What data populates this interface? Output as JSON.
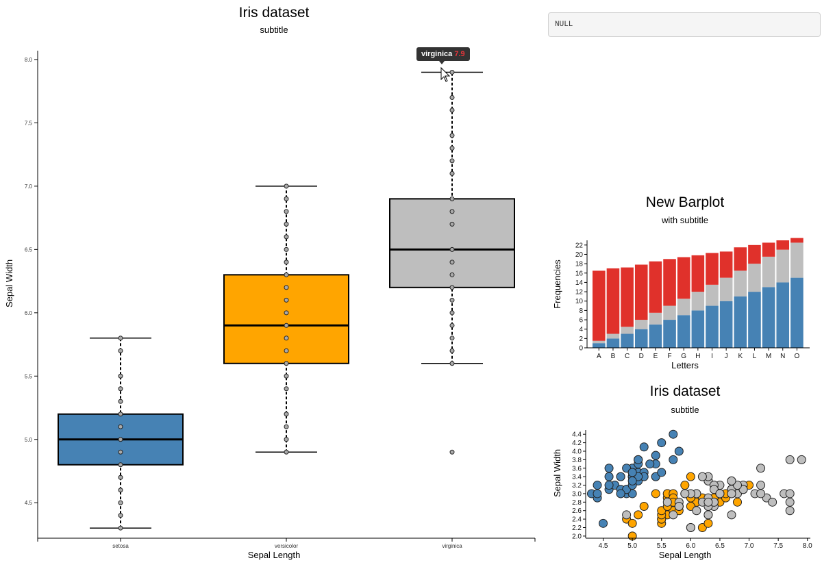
{
  "output_box": {
    "text": "NULL"
  },
  "tooltip": {
    "label": "virginica",
    "value": "7.9"
  },
  "chart_data": [
    {
      "type": "boxplot",
      "title": "Iris dataset",
      "subtitle": "subtitle",
      "xlabel": "Sepal Length",
      "ylabel": "Sepal Width",
      "ylim": [
        4.22,
        8.07
      ],
      "yticks": [
        "4.5",
        "5.0",
        "5.5",
        "6.0",
        "6.5",
        "7.0",
        "7.5",
        "8.0"
      ],
      "categories": [
        "setosa",
        "versicolor",
        "virginica"
      ],
      "colors": [
        "#4682b4",
        "#ffa500",
        "#bebebe"
      ],
      "boxes": [
        {
          "name": "setosa",
          "whisker_low": 4.3,
          "q1": 4.8,
          "median": 5.0,
          "q3": 5.2,
          "whisker_high": 5.8,
          "points": [
            4.3,
            4.4,
            4.5,
            4.6,
            4.7,
            4.8,
            4.9,
            5.0,
            5.1,
            5.2,
            5.3,
            5.4,
            5.5,
            5.7,
            5.8
          ]
        },
        {
          "name": "versicolor",
          "whisker_low": 4.9,
          "q1": 5.6,
          "median": 5.9,
          "q3": 6.3,
          "whisker_high": 7.0,
          "points": [
            4.9,
            5.0,
            5.1,
            5.2,
            5.4,
            5.5,
            5.6,
            5.7,
            5.8,
            5.9,
            6.0,
            6.1,
            6.2,
            6.3,
            6.4,
            6.5,
            6.6,
            6.7,
            6.8,
            6.9,
            7.0
          ]
        },
        {
          "name": "virginica",
          "whisker_low": 5.6,
          "q1": 6.2,
          "median": 6.5,
          "q3": 6.9,
          "whisker_high": 7.9,
          "points": [
            4.9,
            5.6,
            5.7,
            5.8,
            5.9,
            6.0,
            6.1,
            6.2,
            6.3,
            6.4,
            6.5,
            6.7,
            6.8,
            6.9,
            7.1,
            7.2,
            7.3,
            7.4,
            7.6,
            7.7,
            7.9
          ]
        }
      ]
    },
    {
      "type": "bar",
      "stacked": true,
      "title": "New Barplot",
      "subtitle": "with subtitle",
      "xlabel": "Letters",
      "ylabel": "Frequencies",
      "ylim": [
        0,
        23
      ],
      "yticks": [
        0,
        2,
        4,
        6,
        8,
        10,
        12,
        14,
        16,
        18,
        20,
        22
      ],
      "categories": [
        "A",
        "B",
        "C",
        "D",
        "E",
        "F",
        "G",
        "H",
        "I",
        "J",
        "K",
        "L",
        "M",
        "N",
        "O"
      ],
      "series": [
        {
          "name": "blue",
          "color": "#4682b4",
          "values": [
            1,
            2,
            3,
            4,
            5,
            6,
            7,
            8,
            9,
            10,
            11,
            12,
            13,
            14,
            15
          ]
        },
        {
          "name": "grey",
          "color": "#bebebe",
          "values": [
            0.5,
            1,
            1.5,
            2,
            2.5,
            3,
            3.5,
            4,
            4.5,
            5,
            5.5,
            6,
            6.5,
            7,
            7.5
          ]
        },
        {
          "name": "red",
          "color": "#e0312b",
          "values": [
            15,
            14,
            12.7,
            11.8,
            11,
            10,
            8.9,
            7.8,
            6.8,
            5.6,
            5,
            4,
            3,
            2,
            1
          ]
        }
      ]
    },
    {
      "type": "scatter",
      "title": "Iris dataset",
      "subtitle": "subtitle",
      "xlabel": "Sepal Length",
      "ylabel": "Sepal Width",
      "xlim": [
        4.2,
        8.05
      ],
      "ylim": [
        1.95,
        4.5
      ],
      "xticks": [
        "4.5",
        "5.0",
        "5.5",
        "6.0",
        "6.5",
        "7.0",
        "7.5",
        "8.0"
      ],
      "yticks": [
        "2.0",
        "2.2",
        "2.4",
        "2.6",
        "2.8",
        "3.0",
        "3.2",
        "3.4",
        "3.6",
        "3.8",
        "4.0",
        "4.2",
        "4.4"
      ],
      "series": [
        {
          "name": "setosa",
          "color": "#4682b4",
          "points": [
            [
              5.1,
              3.5
            ],
            [
              4.9,
              3.0
            ],
            [
              4.7,
              3.2
            ],
            [
              4.6,
              3.1
            ],
            [
              5.0,
              3.6
            ],
            [
              5.4,
              3.9
            ],
            [
              4.6,
              3.4
            ],
            [
              5.0,
              3.4
            ],
            [
              4.4,
              2.9
            ],
            [
              4.9,
              3.1
            ],
            [
              5.4,
              3.7
            ],
            [
              4.8,
              3.4
            ],
            [
              4.8,
              3.0
            ],
            [
              4.3,
              3.0
            ],
            [
              5.8,
              4.0
            ],
            [
              5.7,
              4.4
            ],
            [
              5.4,
              3.9
            ],
            [
              5.1,
              3.5
            ],
            [
              5.7,
              3.8
            ],
            [
              5.1,
              3.8
            ],
            [
              5.4,
              3.4
            ],
            [
              5.1,
              3.7
            ],
            [
              4.6,
              3.6
            ],
            [
              5.1,
              3.3
            ],
            [
              4.8,
              3.4
            ],
            [
              5.0,
              3.0
            ],
            [
              5.0,
              3.4
            ],
            [
              5.2,
              3.5
            ],
            [
              5.2,
              3.4
            ],
            [
              4.7,
              3.2
            ],
            [
              4.8,
              3.1
            ],
            [
              5.4,
              3.4
            ],
            [
              5.2,
              4.1
            ],
            [
              5.5,
              4.2
            ],
            [
              4.9,
              3.1
            ],
            [
              5.0,
              3.2
            ],
            [
              5.5,
              3.5
            ],
            [
              4.9,
              3.6
            ],
            [
              4.4,
              3.0
            ],
            [
              5.1,
              3.4
            ],
            [
              5.0,
              3.5
            ],
            [
              4.5,
              2.3
            ],
            [
              4.4,
              3.2
            ],
            [
              5.0,
              3.5
            ],
            [
              5.1,
              3.8
            ],
            [
              4.8,
              3.0
            ],
            [
              5.1,
              3.8
            ],
            [
              4.6,
              3.2
            ],
            [
              5.3,
              3.7
            ],
            [
              5.0,
              3.3
            ]
          ]
        },
        {
          "name": "versicolor",
          "color": "#ffa500",
          "points": [
            [
              7.0,
              3.2
            ],
            [
              6.4,
              3.2
            ],
            [
              6.9,
              3.1
            ],
            [
              5.5,
              2.3
            ],
            [
              6.5,
              2.8
            ],
            [
              5.7,
              2.8
            ],
            [
              6.3,
              3.3
            ],
            [
              4.9,
              2.4
            ],
            [
              6.6,
              2.9
            ],
            [
              5.2,
              2.7
            ],
            [
              5.0,
              2.0
            ],
            [
              5.9,
              3.0
            ],
            [
              6.0,
              2.2
            ],
            [
              6.1,
              2.9
            ],
            [
              5.6,
              2.9
            ],
            [
              6.7,
              3.1
            ],
            [
              5.6,
              3.0
            ],
            [
              5.8,
              2.7
            ],
            [
              6.2,
              2.2
            ],
            [
              5.6,
              2.5
            ],
            [
              5.9,
              3.2
            ],
            [
              6.1,
              2.8
            ],
            [
              6.3,
              2.5
            ],
            [
              6.1,
              2.8
            ],
            [
              6.4,
              2.9
            ],
            [
              6.6,
              3.0
            ],
            [
              6.8,
              2.8
            ],
            [
              6.7,
              3.0
            ],
            [
              6.0,
              2.9
            ],
            [
              5.7,
              2.6
            ],
            [
              5.5,
              2.4
            ],
            [
              5.5,
              2.4
            ],
            [
              5.8,
              2.7
            ],
            [
              6.0,
              2.7
            ],
            [
              5.4,
              3.0
            ],
            [
              6.0,
              3.4
            ],
            [
              6.7,
              3.1
            ],
            [
              6.3,
              2.3
            ],
            [
              5.6,
              3.0
            ],
            [
              5.5,
              2.5
            ],
            [
              5.5,
              2.6
            ],
            [
              6.1,
              3.0
            ],
            [
              5.8,
              2.6
            ],
            [
              5.0,
              2.3
            ],
            [
              5.6,
              2.7
            ],
            [
              5.7,
              3.0
            ],
            [
              5.7,
              2.9
            ],
            [
              6.2,
              2.9
            ],
            [
              5.1,
              2.5
            ],
            [
              5.7,
              2.8
            ]
          ]
        },
        {
          "name": "virginica",
          "color": "#bebebe",
          "points": [
            [
              6.3,
              3.3
            ],
            [
              5.8,
              2.7
            ],
            [
              7.1,
              3.0
            ],
            [
              6.3,
              2.9
            ],
            [
              6.5,
              3.0
            ],
            [
              7.6,
              3.0
            ],
            [
              4.9,
              2.5
            ],
            [
              7.3,
              2.9
            ],
            [
              6.7,
              2.5
            ],
            [
              7.2,
              3.6
            ],
            [
              6.5,
              3.2
            ],
            [
              6.4,
              2.7
            ],
            [
              6.8,
              3.0
            ],
            [
              5.7,
              2.5
            ],
            [
              5.8,
              2.8
            ],
            [
              6.4,
              3.2
            ],
            [
              6.5,
              3.0
            ],
            [
              7.7,
              3.8
            ],
            [
              7.7,
              2.6
            ],
            [
              6.0,
              2.2
            ],
            [
              6.9,
              3.2
            ],
            [
              5.6,
              2.8
            ],
            [
              7.7,
              2.8
            ],
            [
              6.3,
              2.7
            ],
            [
              6.7,
              3.3
            ],
            [
              7.2,
              3.2
            ],
            [
              6.2,
              2.8
            ],
            [
              6.1,
              3.0
            ],
            [
              6.4,
              2.8
            ],
            [
              7.2,
              3.0
            ],
            [
              7.4,
              2.8
            ],
            [
              7.9,
              3.8
            ],
            [
              6.4,
              2.8
            ],
            [
              6.3,
              2.8
            ],
            [
              6.1,
              2.6
            ],
            [
              7.7,
              3.0
            ],
            [
              6.3,
              3.4
            ],
            [
              6.4,
              3.1
            ],
            [
              6.0,
              3.0
            ],
            [
              6.9,
              3.1
            ],
            [
              6.7,
              3.1
            ],
            [
              6.9,
              3.1
            ],
            [
              5.8,
              2.7
            ],
            [
              6.8,
              3.2
            ],
            [
              6.7,
              3.3
            ],
            [
              6.7,
              3.0
            ],
            [
              6.3,
              2.5
            ],
            [
              6.5,
              3.0
            ],
            [
              6.2,
              3.4
            ],
            [
              5.9,
              3.0
            ]
          ]
        }
      ]
    }
  ]
}
